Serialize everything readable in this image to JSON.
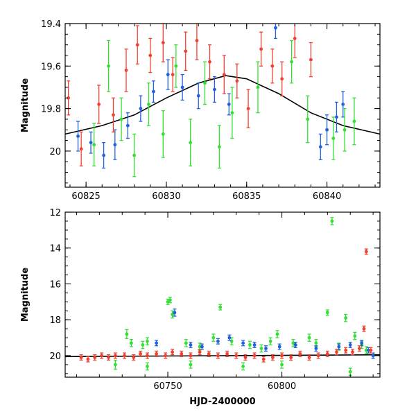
{
  "chart_data": [
    {
      "type": "scatter",
      "panel": "top",
      "xlabel": "",
      "ylabel": "Magnitude",
      "xlim": [
        60823.7,
        60843.3
      ],
      "ylim": [
        20.17,
        19.4
      ],
      "y_inverted": true,
      "x_ticks": [
        60825,
        60830,
        60835,
        60840
      ],
      "y_ticks": [
        19.4,
        19.6,
        19.8,
        20
      ],
      "tick_labels_x": [
        "60825",
        "60830",
        "60835",
        "60840"
      ],
      "tick_labels_y": [
        "19.4",
        "19.6",
        "19.8",
        "20"
      ],
      "model_curve": {
        "color": "#000000",
        "description_points": [
          [
            60823.7,
            19.92
          ],
          [
            60826,
            19.88
          ],
          [
            60828,
            19.83
          ],
          [
            60830,
            19.75
          ],
          [
            60832,
            19.68
          ],
          [
            60833.7,
            19.645
          ],
          [
            60835,
            19.66
          ],
          [
            60837,
            19.73
          ],
          [
            60839,
            19.82
          ],
          [
            60841,
            19.88
          ],
          [
            60843.3,
            19.92
          ]
        ]
      },
      "series": [
        {
          "color": "#2060e0",
          "points": [
            [
              60824.5,
              19.93,
              0.07
            ],
            [
              60825.3,
              19.96,
              0.05
            ],
            [
              60826.1,
              20.02,
              0.06
            ],
            [
              60826.8,
              19.97,
              0.07
            ],
            [
              60827.6,
              19.88,
              0.06
            ],
            [
              60828.4,
              19.8,
              0.06
            ],
            [
              60829.2,
              19.72,
              0.05
            ],
            [
              60830.1,
              19.64,
              0.07
            ],
            [
              60831.0,
              19.7,
              0.06
            ],
            [
              60832.0,
              19.74,
              0.06
            ],
            [
              60833.0,
              19.71,
              0.06
            ],
            [
              60833.9,
              19.78,
              0.05
            ],
            [
              60836.8,
              19.42,
              0.05
            ],
            [
              60839.6,
              19.98,
              0.06
            ],
            [
              60840.0,
              19.9,
              0.07
            ],
            [
              60840.6,
              19.84,
              0.07
            ],
            [
              60841.0,
              19.78,
              0.06
            ]
          ]
        },
        {
          "color": "#33e033",
          "points": [
            [
              60825.5,
              19.97,
              0.1
            ],
            [
              60826.4,
              19.6,
              0.12
            ],
            [
              60827.2,
              19.85,
              0.1
            ],
            [
              60828.0,
              20.02,
              0.1
            ],
            [
              60828.9,
              19.78,
              0.1
            ],
            [
              60829.8,
              19.92,
              0.11
            ],
            [
              60830.6,
              19.6,
              0.1
            ],
            [
              60831.5,
              19.96,
              0.11
            ],
            [
              60832.4,
              19.68,
              0.1
            ],
            [
              60833.3,
              19.98,
              0.1
            ],
            [
              60834.1,
              19.82,
              0.12
            ],
            [
              60835.7,
              19.7,
              0.12
            ],
            [
              60837.8,
              19.58,
              0.1
            ],
            [
              60838.8,
              19.85,
              0.11
            ],
            [
              60840.4,
              19.94,
              0.1
            ],
            [
              60841.1,
              19.9,
              0.1
            ],
            [
              60841.7,
              19.86,
              0.11
            ]
          ]
        },
        {
          "color": "#f04030",
          "points": [
            [
              60823.9,
              19.75,
              0.08
            ],
            [
              60824.7,
              19.99,
              0.08
            ],
            [
              60825.8,
              19.78,
              0.09
            ],
            [
              60826.7,
              19.83,
              0.08
            ],
            [
              60827.5,
              19.62,
              0.1
            ],
            [
              60828.2,
              19.5,
              0.09
            ],
            [
              60829.0,
              19.55,
              0.08
            ],
            [
              60829.8,
              19.49,
              0.09
            ],
            [
              60830.4,
              19.64,
              0.08
            ],
            [
              60831.2,
              19.53,
              0.09
            ],
            [
              60831.9,
              19.48,
              0.09
            ],
            [
              60832.7,
              19.58,
              0.08
            ],
            [
              60833.6,
              19.64,
              0.09
            ],
            [
              60834.4,
              19.67,
              0.08
            ],
            [
              60835.1,
              19.8,
              0.09
            ],
            [
              60835.9,
              19.52,
              0.08
            ],
            [
              60836.6,
              19.6,
              0.08
            ],
            [
              60837.2,
              19.66,
              0.08
            ],
            [
              60838.0,
              19.47,
              0.09
            ],
            [
              60839.0,
              19.57,
              0.08
            ]
          ]
        }
      ]
    },
    {
      "type": "scatter",
      "panel": "bottom",
      "xlabel": "HJD-2400000",
      "ylabel": "Magnitude",
      "xlim": [
        60705,
        60843
      ],
      "ylim": [
        21.2,
        12
      ],
      "y_inverted": true,
      "x_ticks": [
        60750,
        60800
      ],
      "y_ticks": [
        12,
        14,
        16,
        18,
        20
      ],
      "tick_labels_x": [
        "60750",
        "60800"
      ],
      "tick_labels_y": [
        "12",
        "14",
        "16",
        "18",
        "20"
      ],
      "model_curve": {
        "color": "#000000",
        "description_points": [
          [
            60705,
            20.05
          ],
          [
            60843,
            19.95
          ]
        ]
      },
      "series": [
        {
          "color": "#33e033",
          "points": [
            [
              60732,
              18.8,
              0.25
            ],
            [
              60734,
              19.3,
              0.2
            ],
            [
              60739,
              19.4,
              0.2
            ],
            [
              60741,
              19.2,
              0.2
            ],
            [
              60750,
              17.0,
              0.15
            ],
            [
              60751,
              16.9,
              0.15
            ],
            [
              60752,
              17.7,
              0.2
            ],
            [
              60758,
              19.3,
              0.2
            ],
            [
              60764,
              19.5,
              0.2
            ],
            [
              60770,
              19.0,
              0.2
            ],
            [
              60773,
              17.3,
              0.15
            ],
            [
              60778,
              19.2,
              0.2
            ],
            [
              60786,
              19.4,
              0.2
            ],
            [
              60791,
              19.6,
              0.2
            ],
            [
              60795,
              19.2,
              0.2
            ],
            [
              60798,
              18.8,
              0.2
            ],
            [
              60805,
              19.3,
              0.2
            ],
            [
              60812,
              19.0,
              0.2
            ],
            [
              60815,
              19.3,
              0.2
            ],
            [
              60820,
              17.6,
              0.15
            ],
            [
              60822,
              12.5,
              0.2
            ],
            [
              60825,
              19.5,
              0.2
            ],
            [
              60828,
              17.9,
              0.2
            ],
            [
              60832,
              18.9,
              0.2
            ],
            [
              60835,
              19.4,
              0.2
            ],
            [
              60837,
              19.7,
              0.2
            ],
            [
              60727,
              20.5,
              0.25
            ],
            [
              60741,
              20.6,
              0.2
            ],
            [
              60760,
              20.5,
              0.2
            ],
            [
              60783,
              20.6,
              0.2
            ],
            [
              60800,
              20.5,
              0.2
            ],
            [
              60830,
              20.9,
              0.2
            ]
          ]
        },
        {
          "color": "#2060e0",
          "points": [
            [
              60745,
              19.3,
              0.15
            ],
            [
              60753,
              17.6,
              0.2
            ],
            [
              60760,
              19.4,
              0.15
            ],
            [
              60765,
              19.5,
              0.15
            ],
            [
              60772,
              19.2,
              0.15
            ],
            [
              60777,
              19.0,
              0.15
            ],
            [
              60783,
              19.3,
              0.15
            ],
            [
              60788,
              19.4,
              0.15
            ],
            [
              60793,
              19.6,
              0.15
            ],
            [
              60799,
              19.5,
              0.15
            ],
            [
              60806,
              19.4,
              0.15
            ],
            [
              60815,
              19.6,
              0.15
            ],
            [
              60825,
              19.5,
              0.15
            ],
            [
              60830,
              19.4,
              0.15
            ],
            [
              60835,
              19.3,
              0.15
            ],
            [
              60838,
              19.7,
              0.15
            ],
            [
              60840,
              20.0,
              0.15
            ]
          ]
        },
        {
          "color": "#f04030",
          "points": [
            [
              60712,
              20.1,
              0.15
            ],
            [
              60715,
              20.2,
              0.15
            ],
            [
              60718,
              20.1,
              0.15
            ],
            [
              60721,
              20.0,
              0.15
            ],
            [
              60724,
              20.1,
              0.15
            ],
            [
              60727,
              20.0,
              0.15
            ],
            [
              60731,
              20.0,
              0.15
            ],
            [
              60735,
              20.1,
              0.15
            ],
            [
              60738,
              19.9,
              0.15
            ],
            [
              60741,
              20.0,
              0.15
            ],
            [
              60745,
              19.9,
              0.15
            ],
            [
              60749,
              20.0,
              0.15
            ],
            [
              60752,
              19.8,
              0.15
            ],
            [
              60756,
              19.9,
              0.15
            ],
            [
              60760,
              20.0,
              0.15
            ],
            [
              60764,
              19.8,
              0.15
            ],
            [
              60768,
              19.9,
              0.15
            ],
            [
              60772,
              20.0,
              0.15
            ],
            [
              60776,
              19.9,
              0.15
            ],
            [
              60780,
              20.0,
              0.15
            ],
            [
              60784,
              20.1,
              0.15
            ],
            [
              60788,
              20.0,
              0.15
            ],
            [
              60792,
              20.2,
              0.15
            ],
            [
              60796,
              20.1,
              0.15
            ],
            [
              60800,
              20.0,
              0.15
            ],
            [
              60804,
              20.1,
              0.15
            ],
            [
              60808,
              19.9,
              0.15
            ],
            [
              60812,
              20.1,
              0.15
            ],
            [
              60816,
              20.0,
              0.15
            ],
            [
              60820,
              19.9,
              0.15
            ],
            [
              60824,
              19.8,
              0.15
            ],
            [
              60828,
              19.7,
              0.15
            ],
            [
              60831,
              19.8,
              0.15
            ],
            [
              60834,
              19.6,
              0.15
            ],
            [
              60836,
              18.5,
              0.15
            ],
            [
              60837,
              14.2,
              0.15
            ],
            [
              60839,
              19.7,
              0.15
            ]
          ]
        }
      ]
    }
  ]
}
